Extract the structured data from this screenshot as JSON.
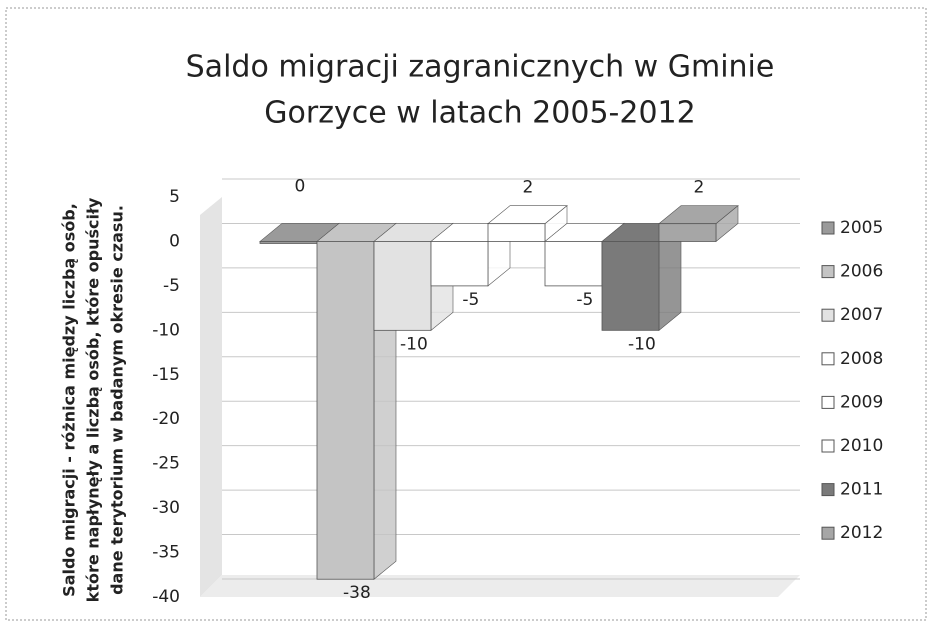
{
  "chart_data": {
    "type": "bar",
    "title": [
      "Saldo migracji zagranicznych w Gminie",
      "Gorzyce w latach 2005-2012"
    ],
    "ylabel": [
      "Saldo migracji - różnica między liczbą osób,",
      "które napłynęły a liczbą osób, które opuściły",
      "dane terytorium w badanym okresie czasu."
    ],
    "categories": [
      null
    ],
    "series": [
      {
        "name": "2005",
        "color": "#9a9a9a",
        "values": [
          0
        ]
      },
      {
        "name": "2006",
        "color": "#c4c4c4",
        "values": [
          -38
        ]
      },
      {
        "name": "2007",
        "color": "#e2e2e2",
        "values": [
          -10
        ]
      },
      {
        "name": "2008",
        "color": "#ffffff",
        "values": [
          -5
        ]
      },
      {
        "name": "2009",
        "color": "#ffffff",
        "values": [
          2
        ]
      },
      {
        "name": "2010",
        "color": "#ffffff",
        "values": [
          -5
        ]
      },
      {
        "name": "2011",
        "color": "#7a7a7a",
        "values": [
          -10
        ]
      },
      {
        "name": "2012",
        "color": "#a6a6a6",
        "values": [
          2
        ]
      }
    ],
    "ylim": [
      -40,
      5
    ],
    "yticks": [
      5,
      0,
      -5,
      -10,
      -15,
      -20,
      -25,
      -30,
      -35,
      -40
    ],
    "grid": true,
    "legend": "right"
  }
}
